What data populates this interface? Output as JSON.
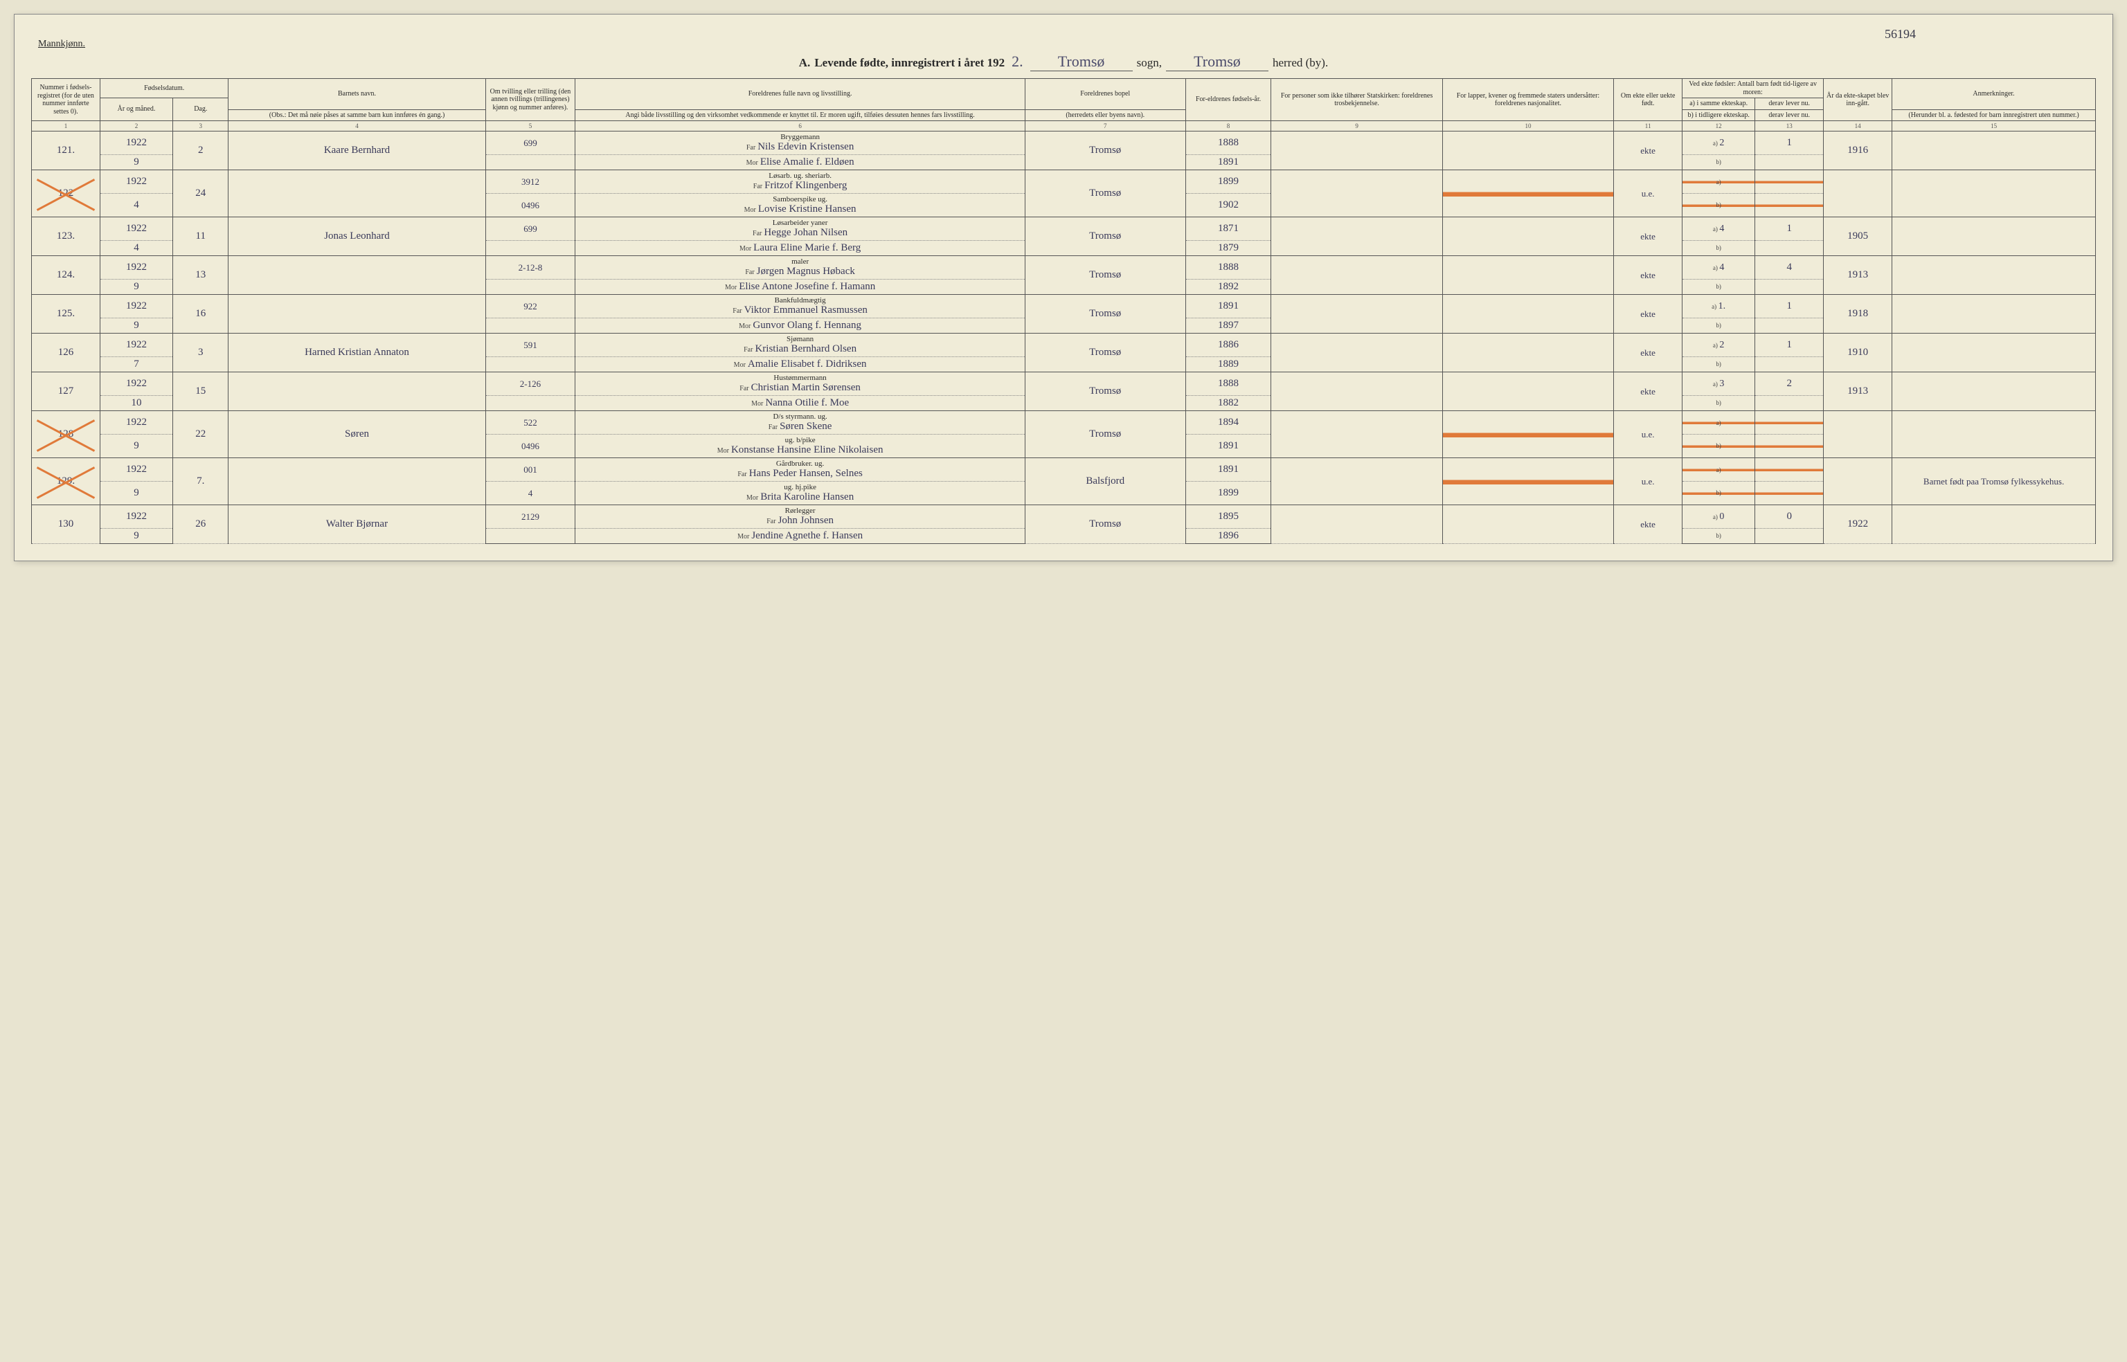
{
  "top_reference": "56194",
  "gender_label": "Mannkjønn.",
  "title": {
    "prefix": "A.",
    "text": "Levende fødte, innregistrert i året 192",
    "year_suffix": "2.",
    "sogn": "Tromsø",
    "sogn_label": "sogn,",
    "herred": "Tromsø",
    "herred_label": "herred (by)."
  },
  "headers": {
    "c1": "Nummer i fødsels-registret (for de uten nummer innførte settes 0).",
    "c2_3": "Fødselsdatum.",
    "c2": "År og måned.",
    "c3": "Dag.",
    "c4": "Barnets navn.",
    "c4_sub": "(Obs.: Det må nøie påses at samme barn kun innføres én gang.)",
    "c5": "Om tvilling eller trilling (den annen tvillings (trillingenes) kjønn og nummer anføres).",
    "c6": "Foreldrenes fulle navn og livsstilling.",
    "c6_sub": "Angi både livsstilling og den virksomhet vedkommende er knyttet til. Er moren ugift, tilføies dessuten hennes fars livsstilling.",
    "c7": "Foreldrenes bopel",
    "c7_sub": "(herredets eller byens navn).",
    "c8": "For-eldrenes fødsels-år.",
    "c9": "For personer som ikke tilhører Statskirken: foreldrenes trosbekjennelse.",
    "c10": "For lapper, kvener og fremmede staters undersåtter: foreldrenes nasjonalitet.",
    "c11": "Om ekte eller uekte født.",
    "c12_13": "Ved ekte fødsler: Antall barn født tid-ligere av moren:",
    "c12a": "a) i samme ekteskap.",
    "c12b": "b) i tidligere ekteskap.",
    "c13a": "derav lever nu.",
    "c13b": "derav lever nu.",
    "c14": "År da ekte-skapet blev inn-gått.",
    "c15": "Anmerkninger.",
    "c15_sub": "(Herunder bl. a. fødested for barn innregistrert uten nummer.)",
    "far": "Far",
    "mor": "Mor"
  },
  "colnums": [
    "1",
    "2",
    "3",
    "4",
    "5",
    "6",
    "7",
    "8",
    "9",
    "10",
    "11",
    "12",
    "13",
    "14",
    "15"
  ],
  "rows": [
    {
      "num": "121.",
      "year": "1922",
      "month": "9",
      "day": "2",
      "child": "Kaare Bernhard",
      "code": "699",
      "far_occ": "Bryggemann",
      "far": "Nils Edevin Kristensen",
      "mor": "Elise Amalie f. Eldøen",
      "place": "Tromsø",
      "fy": "1888",
      "my": "1891",
      "ekte": "ekte",
      "a": "2",
      "lev": "1",
      "marr": "1916",
      "note": "",
      "mark": ""
    },
    {
      "num": "122",
      "year": "1922",
      "month": "4",
      "day": "24",
      "child": "",
      "code": "3912",
      "code2": "0496",
      "far_occ": "Løsarb. ug. sheriarb.",
      "far": "Fritzof Klingenberg",
      "mor_occ": "Samboerspike ug.",
      "mor": "Lovise Kristine Hansen",
      "place": "Tromsø",
      "fy": "1899",
      "my": "1902",
      "ekte": "u.e.",
      "a": "",
      "lev": "",
      "marr": "",
      "note": "",
      "mark": "x",
      "strike": true
    },
    {
      "num": "123.",
      "year": "1922",
      "month": "4",
      "day": "11",
      "child": "Jonas Leonhard",
      "code": "699",
      "far_occ": "Løsarbeider yaner",
      "far": "Hegge Johan Nilsen",
      "mor": "Laura Eline Marie f. Berg",
      "place": "Tromsø",
      "fy": "1871",
      "my": "1879",
      "ekte": "ekte",
      "a": "4",
      "lev": "1",
      "marr": "1905",
      "note": "",
      "mark": ""
    },
    {
      "num": "124.",
      "year": "1922",
      "month": "9",
      "day": "13",
      "child": "",
      "code": "2-12-8",
      "far_occ": "maler",
      "far": "Jørgen Magnus Høback",
      "mor": "Elise Antone Josefine f. Hamann",
      "place": "Tromsø",
      "fy": "1888",
      "my": "1892",
      "ekte": "ekte",
      "a": "4",
      "lev": "4",
      "marr": "1913",
      "note": "",
      "mark": ""
    },
    {
      "num": "125.",
      "year": "1922",
      "month": "9",
      "day": "16",
      "child": "",
      "code": "922",
      "far_occ": "Bankfuldmægtig",
      "far": "Viktor Emmanuel Rasmussen",
      "mor": "Gunvor Olang f. Hennang",
      "place": "Tromsø",
      "fy": "1891",
      "my": "1897",
      "ekte": "ekte",
      "a": "1.",
      "lev": "1",
      "marr": "1918",
      "note": "",
      "mark": ""
    },
    {
      "num": "126",
      "year": "1922",
      "month": "7",
      "day": "3",
      "child": "Harned Kristian Annaton",
      "code": "591",
      "far_occ": "Sjømann",
      "far": "Kristian Bernhard Olsen",
      "mor": "Amalie Elisabet f. Didriksen",
      "place": "Tromsø",
      "fy": "1886",
      "my": "1889",
      "ekte": "ekte",
      "a": "2",
      "lev": "1",
      "marr": "1910",
      "note": "",
      "mark": ""
    },
    {
      "num": "127",
      "year": "1922",
      "month": "10",
      "day": "15",
      "child": "",
      "code": "2-126",
      "far_occ": "Hustømmermann",
      "far": "Christian Martin Sørensen",
      "mor": "Nanna Otilie f. Moe",
      "place": "Tromsø",
      "fy": "1888",
      "my": "1882",
      "ekte": "ekte",
      "a": "3",
      "lev": "2",
      "marr": "1913",
      "note": "",
      "mark": ""
    },
    {
      "num": "128",
      "year": "1922",
      "month": "9",
      "day": "22",
      "child": "Søren",
      "code": "522",
      "code2": "0496",
      "far_occ": "D/s styrmann. ug.",
      "far": "Søren Skene",
      "mor_occ": "ug. b/pike",
      "mor": "Konstanse Hansine Eline Nikolaisen",
      "place": "Tromsø",
      "fy": "1894",
      "my": "1891",
      "ekte": "u.e.",
      "a": "",
      "lev": "",
      "marr": "",
      "note": "",
      "mark": "x",
      "strike": true
    },
    {
      "num": "129.",
      "year": "1922",
      "month": "9",
      "day": "7.",
      "child": "",
      "code": "001",
      "code2": "4",
      "far_occ": "Gårdbruker. ug.",
      "far": "Hans Peder Hansen, Selnes",
      "mor_occ": "ug. hj.pike",
      "mor": "Brita Karoline Hansen",
      "place": "Balsfjord",
      "fy": "1891",
      "my": "1899",
      "ekte": "u.e.",
      "a": "",
      "lev": "",
      "marr": "",
      "note": "Barnet født paa Tromsø fylkessykehus.",
      "mark": "x",
      "strike": true
    },
    {
      "num": "130",
      "year": "1922",
      "month": "9",
      "day": "26",
      "child": "Walter Bjørnar",
      "code": "2129",
      "far_occ": "Rørlegger",
      "far": "John Johnsen",
      "mor": "Jendine Agnethe f. Hansen",
      "place": "Tromsø",
      "fy": "1895",
      "my": "1896",
      "ekte": "ekte",
      "a": "0",
      "lev": "0",
      "marr": "1922",
      "note": "",
      "mark": ""
    }
  ],
  "colors": {
    "paper": "#f0ecd8",
    "ink": "#2a2a2a",
    "handwriting": "#3a3a5a",
    "orange_mark": "#e07a3a",
    "border": "#555555"
  }
}
